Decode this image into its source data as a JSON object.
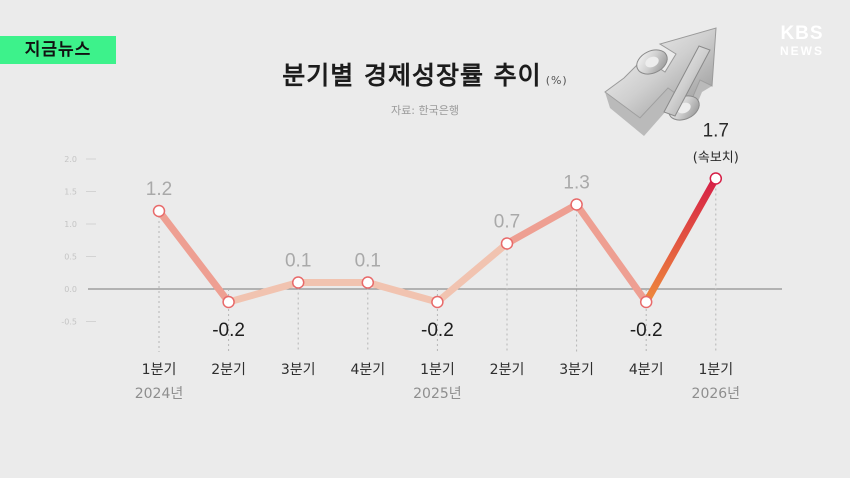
{
  "badge": "지금뉴스",
  "logo": {
    "line1": "KBS",
    "line2": "NEWS"
  },
  "title": "분기별 경제성장률 추이",
  "unit": "(%)",
  "source": "자료: 한국은행",
  "icon": "percent-arrow-up-icon",
  "colors": {
    "background": "#ebebeb",
    "badge": "#3df28b",
    "line_soft": "#f1c3b0",
    "line_warm": "#ee9f92",
    "line_hot": "#e04a3c",
    "marker_edge": "#e86a6a",
    "highlight": "#d61f46"
  },
  "chart_data": {
    "type": "line",
    "title": "분기별 경제성장률 추이",
    "unit": "(%)",
    "categories": [
      {
        "quarter": "1분기",
        "year": "2024년"
      },
      {
        "quarter": "2분기",
        "year": ""
      },
      {
        "quarter": "3분기",
        "year": ""
      },
      {
        "quarter": "4분기",
        "year": ""
      },
      {
        "quarter": "1분기",
        "year": "2025년"
      },
      {
        "quarter": "2분기",
        "year": ""
      },
      {
        "quarter": "3분기",
        "year": ""
      },
      {
        "quarter": "4분기",
        "year": ""
      },
      {
        "quarter": "1분기",
        "year": "2026년"
      }
    ],
    "values": [
      1.2,
      -0.2,
      0.1,
      0.1,
      -0.2,
      0.7,
      1.3,
      -0.2,
      1.7
    ],
    "value_labels": [
      "1.2",
      "-0.2",
      "0.1",
      "0.1",
      "-0.2",
      "0.7",
      "1.3",
      "-0.2",
      "1.7"
    ],
    "last_point_note": "(속보치)",
    "y_ticks": [
      2.0,
      1.5,
      1.0,
      0.5,
      0.0,
      -0.5
    ],
    "y_tick_labels": [
      "2.0",
      "1.5",
      "1.0",
      "0.5",
      "0.0",
      "-0.5"
    ],
    "ylim": [
      -0.5,
      2.0
    ],
    "grid": false
  }
}
